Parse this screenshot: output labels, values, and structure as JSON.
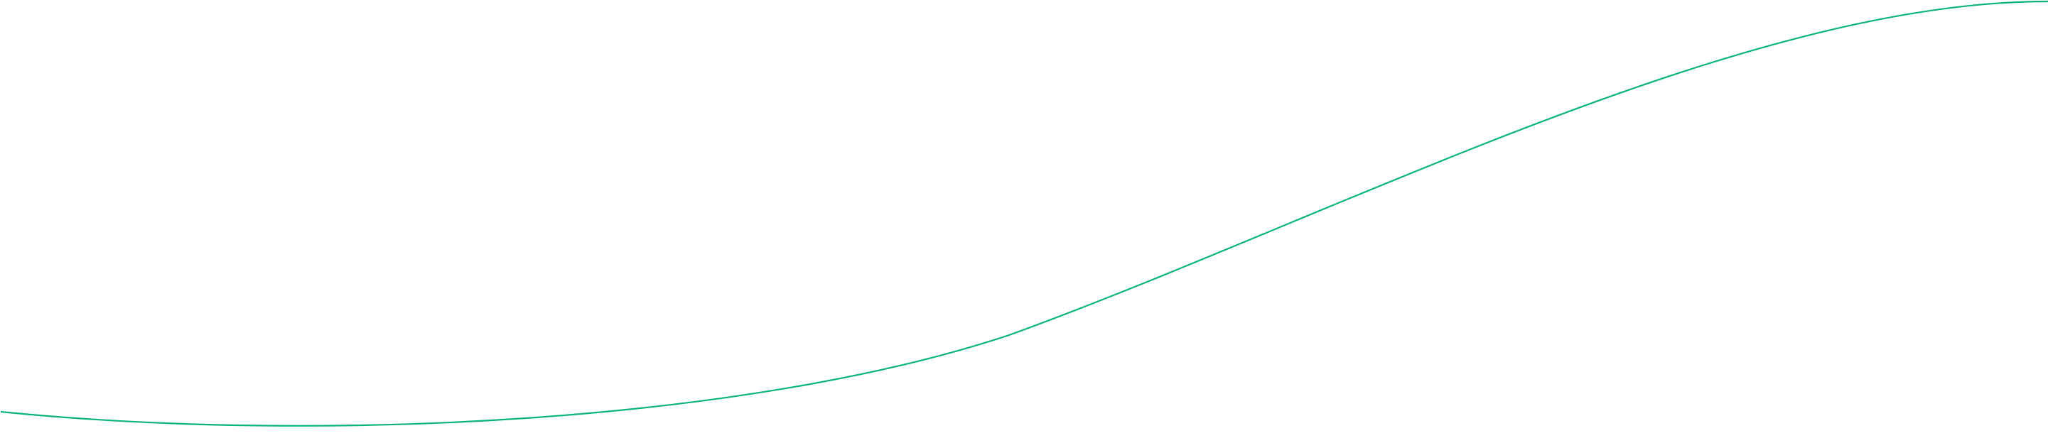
{
  "curve": {
    "stroke_color": "#0bb47a"
  }
}
